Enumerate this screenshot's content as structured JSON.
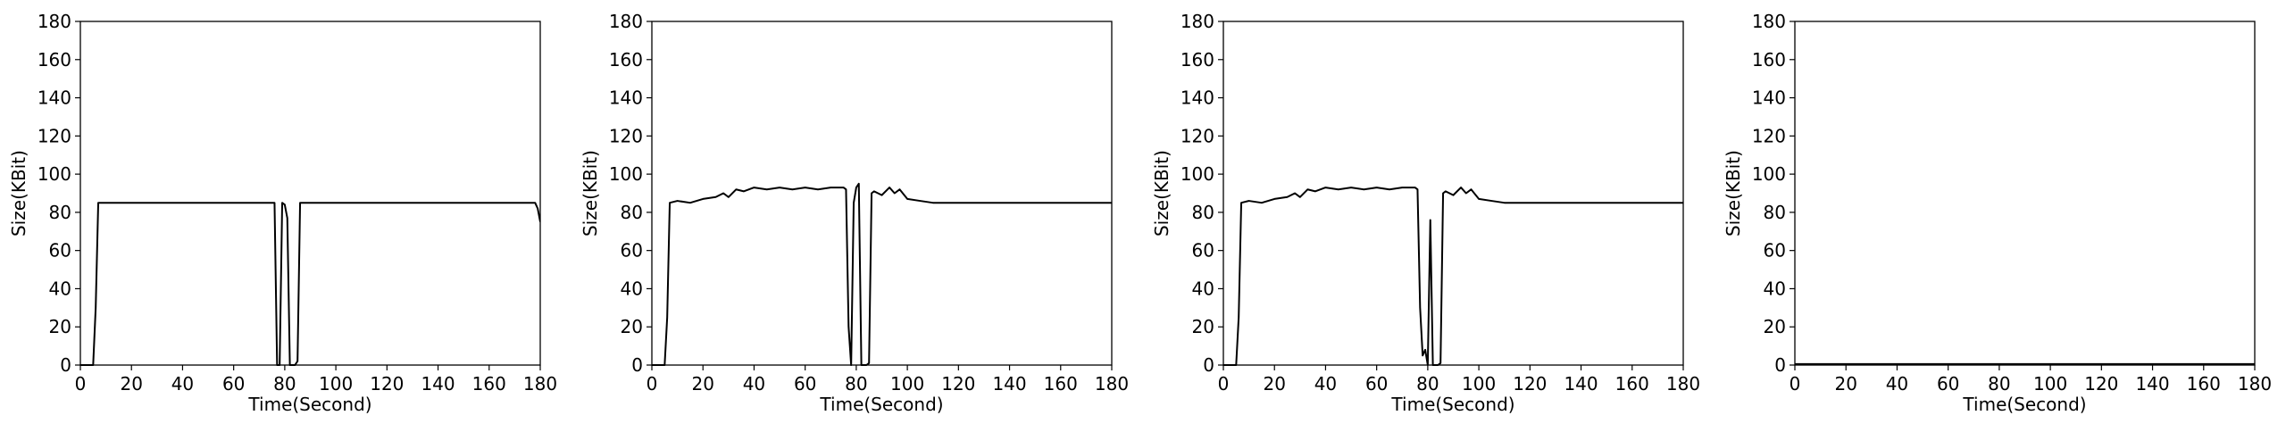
{
  "chart_data": [
    {
      "type": "line",
      "xlabel": "Time(Second)",
      "ylabel": "Size(KBit)",
      "xlim": [
        0,
        180
      ],
      "ylim": [
        0,
        180
      ],
      "xticks": [
        0,
        20,
        40,
        60,
        80,
        100,
        120,
        140,
        160,
        180
      ],
      "yticks": [
        0,
        20,
        40,
        60,
        80,
        100,
        120,
        140,
        160,
        180
      ],
      "grid": false,
      "series": [
        {
          "color": "#000000",
          "x": [
            0,
            5,
            6,
            7,
            10,
            20,
            30,
            40,
            50,
            60,
            70,
            75,
            76,
            77,
            78,
            79,
            80,
            81,
            82,
            83,
            84,
            85,
            86,
            87,
            90,
            100,
            110,
            120,
            130,
            140,
            150,
            160,
            170,
            178,
            179,
            180
          ],
          "y": [
            0,
            0,
            30,
            85,
            85,
            85,
            85,
            85,
            85,
            85,
            85,
            85,
            85,
            0,
            0,
            85,
            84,
            77,
            0,
            0,
            0,
            2,
            85,
            85,
            85,
            85,
            85,
            85,
            85,
            85,
            85,
            85,
            85,
            85,
            82,
            75
          ]
        }
      ]
    },
    {
      "type": "line",
      "xlabel": "Time(Second)",
      "ylabel": "Size(KBit)",
      "xlim": [
        0,
        180
      ],
      "ylim": [
        0,
        180
      ],
      "xticks": [
        0,
        20,
        40,
        60,
        80,
        100,
        120,
        140,
        160,
        180
      ],
      "yticks": [
        0,
        20,
        40,
        60,
        80,
        100,
        120,
        140,
        160,
        180
      ],
      "grid": false,
      "series": [
        {
          "color": "#000000",
          "x": [
            0,
            5,
            6,
            7,
            10,
            15,
            20,
            25,
            28,
            30,
            33,
            36,
            40,
            45,
            50,
            55,
            60,
            65,
            70,
            74,
            75,
            76,
            77,
            78,
            79,
            80,
            81,
            82,
            83,
            84,
            85,
            86,
            87,
            90,
            93,
            95,
            97,
            100,
            105,
            110,
            120,
            130,
            140,
            150,
            160,
            170,
            180
          ],
          "y": [
            0,
            0,
            25,
            85,
            86,
            85,
            87,
            88,
            90,
            88,
            92,
            91,
            93,
            92,
            93,
            92,
            93,
            92,
            93,
            93,
            93,
            92,
            20,
            0,
            85,
            93,
            95,
            0,
            0,
            0,
            1,
            90,
            91,
            89,
            93,
            90,
            92,
            87,
            86,
            85,
            85,
            85,
            85,
            85,
            85,
            85,
            85
          ]
        }
      ]
    },
    {
      "type": "line",
      "xlabel": "Time(Second)",
      "ylabel": "Size(KBit)",
      "xlim": [
        0,
        180
      ],
      "ylim": [
        0,
        180
      ],
      "xticks": [
        0,
        20,
        40,
        60,
        80,
        100,
        120,
        140,
        160,
        180
      ],
      "yticks": [
        0,
        20,
        40,
        60,
        80,
        100,
        120,
        140,
        160,
        180
      ],
      "grid": false,
      "series": [
        {
          "color": "#000000",
          "x": [
            0,
            5,
            6,
            7,
            10,
            15,
            20,
            25,
            28,
            30,
            33,
            36,
            40,
            45,
            50,
            55,
            60,
            65,
            70,
            74,
            75,
            76,
            77,
            78,
            79,
            80,
            81,
            82,
            83,
            84,
            85,
            86,
            87,
            90,
            93,
            95,
            97,
            100,
            105,
            110,
            120,
            130,
            140,
            150,
            160,
            170,
            180
          ],
          "y": [
            0,
            0,
            25,
            85,
            86,
            85,
            87,
            88,
            90,
            88,
            92,
            91,
            93,
            92,
            93,
            92,
            93,
            92,
            93,
            93,
            93,
            92,
            30,
            5,
            8,
            0,
            76,
            0,
            0,
            0,
            1,
            90,
            91,
            89,
            93,
            90,
            92,
            87,
            86,
            85,
            85,
            85,
            85,
            85,
            85,
            85,
            85
          ]
        }
      ]
    },
    {
      "type": "line",
      "xlabel": "Time(Second)",
      "ylabel": "Size(KBit)",
      "xlim": [
        0,
        180
      ],
      "ylim": [
        0,
        180
      ],
      "xticks": [
        0,
        20,
        40,
        60,
        80,
        100,
        120,
        140,
        160,
        180
      ],
      "yticks": [
        0,
        20,
        40,
        60,
        80,
        100,
        120,
        140,
        160,
        180
      ],
      "grid": false,
      "series": [
        {
          "color": "#000000",
          "x": [
            0,
            180
          ],
          "y": [
            0.5,
            0.5
          ]
        }
      ]
    }
  ]
}
